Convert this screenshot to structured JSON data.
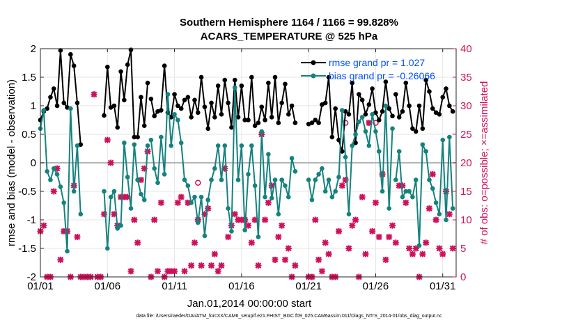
{
  "header": {
    "title_line1": "Southern Hemisphere 1164 / 1166 = 99.828%",
    "title_line2": "ACARS_TEMPERATURE @ 525 hPa"
  },
  "footer": {
    "datafile": "data file: /Users/raeder/DAI/ATM_forcXX/CAM6_setup/f.e21.FHIST_BGC.f09_025.CAM6assim.011/Diags_NTrS_2014-01/obs_diag_output.nc"
  },
  "colors": {
    "rmse": "#000000",
    "bias": "#14827f",
    "obs": "#d0105a",
    "zero_line": "#b4b4b4"
  },
  "chart_data": {
    "type": "line",
    "xlabel": "Jan.01,2014 00:00:00 start",
    "ylabel_left": "rmse and bias (model - observation)",
    "ylabel_right": "# of obs: o=possible; ×=assimilated",
    "xlim": [
      1,
      32
    ],
    "ylim_left": [
      -2,
      2
    ],
    "ylim_right": [
      0,
      40
    ],
    "x_ticks": [
      1,
      6,
      11,
      16,
      21,
      26,
      31
    ],
    "x_tick_labels": [
      "01/01",
      "01/06",
      "01/11",
      "01/16",
      "01/21",
      "01/26",
      "01/31"
    ],
    "y_left_ticks": [
      -2,
      -1.5,
      -1,
      -0.5,
      0,
      0.5,
      1,
      1.5,
      2
    ],
    "y_left_tick_labels": [
      "-2",
      "-1.5",
      "-1",
      "-0.5",
      "0",
      "0.5",
      "1",
      "1.5",
      "2"
    ],
    "y_right_ticks": [
      0,
      5,
      10,
      15,
      20,
      25,
      30,
      35,
      40
    ],
    "y_right_tick_labels": [
      "0",
      "5",
      "10",
      "15",
      "20",
      "25",
      "30",
      "35",
      "40"
    ],
    "legend": {
      "position": "top-right",
      "entries": [
        "rmse grand pr = 1.027",
        "bias grand pr = -0.26066"
      ]
    },
    "series": [
      {
        "name": "rmse",
        "segments": [
          {
            "x": [
              1.0,
              1.25,
              1.5,
              1.75,
              2.0,
              2.25,
              2.5,
              2.75,
              3.0,
              3.25,
              3.5,
              3.75,
              4.0
            ],
            "y": [
              0.75,
              0.9,
              0.95,
              1.15,
              1.3,
              1.0,
              1.97,
              1.05,
              0.97,
              1.9,
              1.7,
              1.05,
              0.32
            ]
          },
          {
            "x": [
              5.75,
              6.0,
              6.25,
              6.5,
              6.75,
              7.0,
              7.25,
              7.5,
              7.75,
              8.0,
              8.25,
              8.5,
              8.75,
              9.0
            ],
            "y": [
              0.83,
              1.68,
              0.97,
              1.0,
              0.62,
              1.6,
              1.1,
              1.72,
              1.98,
              0.45,
              0.45,
              1.15,
              0.65,
              1.4
            ]
          },
          {
            "x": [
              9.25,
              9.5,
              9.75,
              10.0,
              10.25,
              10.5,
              10.75,
              11.0,
              11.25,
              11.5,
              11.75,
              12.0,
              12.25,
              12.5,
              12.75,
              13.0,
              13.25,
              13.5,
              13.75,
              14.0,
              14.25,
              14.5,
              14.75,
              15.0,
              15.25,
              15.5,
              15.75,
              16.0,
              16.25,
              16.5,
              16.75,
              17.0,
              17.25,
              17.5,
              17.75,
              18.0,
              18.25,
              18.5,
              18.75,
              19.0,
              19.25,
              19.5,
              19.75,
              20.0
            ],
            "y": [
              1.12,
              0.82,
              0.9,
              0.92,
              1.7,
              0.88,
              0.8,
              1.2,
              1.0,
              0.95,
              1.1,
              1.15,
              0.8,
              1.1,
              0.88,
              1.5,
              0.98,
              0.6,
              1.05,
              0.8,
              1.35,
              0.85,
              1.45,
              1.05,
              0.62,
              1.45,
              0.8,
              1.35,
              0.75,
              0.75,
              1.5,
              0.65,
              0.7,
              0.98,
              0.75,
              1.4,
              0.8,
              1.5,
              0.7,
              1.05,
              1.38,
              0.85,
              1.0,
              0.7
            ]
          },
          {
            "x": [
              21.0,
              21.25,
              21.5,
              21.75,
              22.0,
              22.25,
              22.5,
              22.75,
              23.0,
              23.25,
              23.5,
              23.75,
              24.0,
              24.25,
              24.5,
              24.75,
              25.0,
              25.25,
              25.5,
              25.75,
              26.0,
              26.25,
              26.5,
              26.75,
              27.0,
              27.25
            ],
            "y": [
              0.68,
              0.7,
              0.75,
              0.7,
              1.02,
              1.05,
              1.5,
              0.45,
              0.95,
              0.4,
              0.2,
              0.9,
              0.85,
              1.4,
              0.35,
              1.2,
              1.1,
              0.85,
              1.02,
              1.3,
              0.88,
              0.75,
              0.9,
              1.42,
              0.95,
              0.82
            ]
          },
          {
            "x": [
              27.5,
              27.75,
              28.0,
              28.25,
              28.5,
              28.75,
              29.0,
              29.25,
              29.5,
              29.75,
              30.0,
              30.25,
              30.5,
              30.75,
              31.0,
              31.25,
              31.5,
              31.75
            ],
            "y": [
              1.2,
              0.8,
              0.9,
              1.4,
              1.0,
              0.6,
              0.55,
              1.0,
              0.6,
              1.45,
              1.25,
              0.95,
              0.88,
              0.85,
              1.15,
              1.3,
              1.0,
              0.9
            ]
          }
        ]
      },
      {
        "name": "bias",
        "segments": [
          {
            "x": [
              1.0,
              1.25,
              1.5,
              1.75,
              2.0,
              2.25,
              2.5,
              2.75,
              3.0,
              3.25,
              3.5,
              3.75,
              4.0
            ],
            "y": [
              0.6,
              0.92,
              -0.15,
              -0.3,
              -0.1,
              -0.2,
              -0.42,
              -0.7,
              -1.55,
              0.95,
              -0.5,
              0.3,
              -0.9
            ]
          },
          {
            "x": [
              5.75,
              6.0,
              6.25,
              6.5,
              6.75,
              7.0,
              7.25,
              7.5,
              7.75,
              8.0,
              8.25,
              8.5,
              8.75,
              9.0
            ],
            "y": [
              -0.5,
              -1.5,
              -0.6,
              -0.5,
              -1.15,
              -1.1,
              0.35,
              -0.25,
              -0.8,
              0.32,
              -0.3,
              -0.55,
              -0.65,
              0.3
            ]
          },
          {
            "x": [
              9.25,
              9.5,
              9.75,
              10.0,
              10.25,
              10.5,
              10.75,
              11.0,
              11.25,
              11.5,
              11.75,
              12.0,
              12.25,
              12.5,
              12.75,
              13.0,
              13.25,
              13.5,
              13.75,
              14.0,
              14.25,
              14.5,
              14.75,
              15.0,
              15.25,
              15.5,
              15.75,
              16.0,
              16.25,
              16.5,
              16.75,
              17.0,
              17.25,
              17.5,
              17.75,
              18.0,
              18.25,
              18.5,
              18.75,
              19.0,
              19.25,
              19.5,
              19.75,
              20.0
            ],
            "y": [
              0.4,
              -0.1,
              -0.35,
              0.45,
              -0.2,
              1.2,
              0.3,
              0.85,
              0.75,
              0.35,
              -0.3,
              -0.4,
              -0.7,
              -0.6,
              -1.05,
              -0.6,
              -1.28,
              -0.65,
              -0.3,
              -0.1,
              0.3,
              -0.3,
              0.3,
              -0.8,
              -1.2,
              1.32,
              -0.3,
              0.3,
              -1.18,
              -0.2,
              0.3,
              -0.4,
              -1.3,
              0.55,
              -0.6,
              0.15,
              -0.62,
              -0.3,
              -0.9,
              -0.3,
              -0.4,
              -0.6,
              0.08,
              -0.15
            ]
          },
          {
            "x": [
              21.0,
              21.25,
              21.5,
              21.75,
              22.0,
              22.25,
              22.5,
              22.75,
              23.0,
              23.25,
              23.5,
              23.75,
              24.0,
              24.25,
              24.5,
              24.75,
              25.0,
              25.25,
              25.5,
              25.75,
              26.0,
              26.25,
              26.5,
              26.75,
              27.0,
              27.25
            ],
            "y": [
              -0.3,
              -0.65,
              -0.3,
              -0.2,
              -0.1,
              -0.5,
              -0.3,
              -0.6,
              -0.5,
              -0.25,
              0.92,
              0.1,
              -0.9,
              0.3,
              0.5,
              0.72,
              0.8,
              0.55,
              0.3,
              0.85,
              0.55,
              0.2,
              -0.5,
              1.0,
              -0.8,
              0.6
            ]
          },
          {
            "x": [
              27.5,
              27.75,
              28.0,
              28.25,
              28.5,
              28.75,
              29.0,
              29.25,
              29.5,
              29.75,
              30.0,
              30.25,
              30.5,
              30.75,
              31.0,
              31.25,
              31.5,
              31.75
            ],
            "y": [
              -0.3,
              0.2,
              -0.6,
              -0.5,
              -0.5,
              -0.6,
              -0.3,
              -1.45,
              0.32,
              0.2,
              -0.3,
              -0.45,
              -0.7,
              -0.9,
              0.4,
              -1.0,
              0.45,
              -0.8
            ]
          }
        ]
      }
    ],
    "obs_assimilated_right_axis": {
      "marker": "×",
      "x": [
        1.0,
        1.25,
        1.5,
        1.75,
        2.0,
        2.25,
        2.5,
        2.75,
        3.0,
        3.25,
        3.5,
        3.75,
        4.0,
        4.25,
        4.5,
        4.75,
        5.0,
        5.25,
        5.5,
        5.75,
        6.0,
        6.25,
        6.5,
        6.75,
        7.0,
        7.25,
        7.5,
        7.75,
        8.0,
        8.25,
        8.5,
        8.75,
        9.0,
        9.25,
        9.5,
        9.75,
        10.0,
        10.25,
        10.5,
        10.75,
        11.0,
        11.25,
        11.5,
        11.75,
        12.0,
        12.25,
        12.5,
        12.75,
        13.0,
        13.25,
        13.5,
        13.75,
        14.0,
        14.25,
        14.5,
        14.75,
        15.0,
        15.25,
        15.5,
        15.75,
        16.0,
        16.25,
        16.5,
        16.75,
        17.0,
        17.25,
        17.5,
        17.75,
        18.0,
        18.25,
        18.5,
        18.75,
        19.0,
        19.25,
        19.5,
        19.75,
        20.0,
        21.0,
        21.25,
        21.5,
        21.75,
        22.0,
        22.25,
        22.5,
        22.75,
        23.0,
        23.25,
        23.5,
        23.75,
        24.0,
        24.25,
        24.5,
        24.75,
        25.0,
        25.25,
        25.5,
        25.75,
        26.0,
        26.25,
        26.5,
        26.75,
        27.0,
        27.25,
        27.5,
        27.75,
        28.0,
        28.25,
        28.5,
        28.75,
        29.0,
        29.25,
        29.5,
        29.75,
        30.0,
        30.25,
        30.5,
        30.75,
        31.0,
        31.25,
        31.5,
        31.75
      ],
      "y": [
        8,
        9,
        0,
        0,
        15,
        19,
        3,
        8,
        8,
        0,
        16,
        7,
        0,
        0,
        0,
        0,
        32,
        0,
        0,
        11,
        24,
        20,
        11,
        9,
        14,
        14,
        14,
        1,
        10,
        6,
        17,
        19,
        22,
        0,
        10,
        1,
        13,
        0,
        1,
        1,
        1,
        13,
        14,
        1,
        13,
        2,
        6,
        10,
        2,
        11,
        12,
        2,
        4,
        1,
        2,
        19,
        7,
        9,
        11,
        10,
        10,
        10,
        9,
        6,
        10,
        2,
        25,
        10,
        13,
        16,
        3,
        7,
        9,
        3,
        5,
        0,
        2,
        0,
        0,
        10,
        3,
        1,
        6,
        4,
        0,
        0,
        8,
        16,
        17,
        5,
        9,
        10,
        0,
        14,
        4,
        27,
        8,
        13,
        7,
        18,
        3,
        7,
        9,
        6,
        16,
        16,
        13,
        5,
        4,
        5,
        0,
        4,
        6,
        12,
        18,
        10,
        5,
        4,
        15,
        11,
        5
      ],
      "extra_points": {
        "x": [
          12.75,
          23.75,
          26.0
        ],
        "y": [
          16.5,
          27,
          27
        ]
      }
    }
  }
}
